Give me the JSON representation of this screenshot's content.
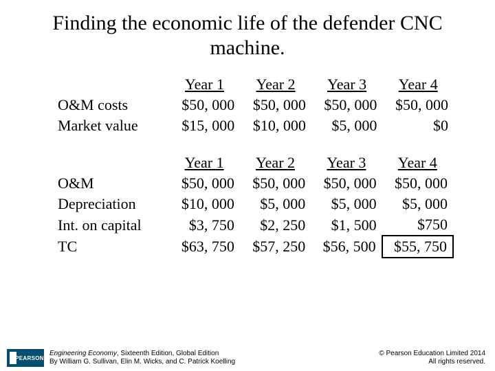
{
  "title": "Finding the economic life of the defender CNC machine.",
  "table1": {
    "headers": [
      "Year 1",
      "Year 2",
      "Year 3",
      "Year 4"
    ],
    "rows": [
      {
        "label": "O&M costs",
        "cells": [
          "$50, 000",
          "$50, 000",
          "$50, 000",
          "$50, 000"
        ]
      },
      {
        "label": "Market value",
        "cells": [
          "$15, 000",
          "$10, 000",
          "$5, 000",
          "$0"
        ]
      }
    ]
  },
  "table2": {
    "headers": [
      "Year 1",
      "Year 2",
      "Year 3",
      "Year 4"
    ],
    "rows": [
      {
        "label": "O&M",
        "cells": [
          "$50, 000",
          "$50, 000",
          "$50, 000",
          "$50, 000"
        ]
      },
      {
        "label": "Depreciation",
        "cells": [
          "$10, 000",
          "$5, 000",
          "$5, 000",
          "$5, 000"
        ]
      },
      {
        "label": "Int. on capital",
        "cells": [
          "$3, 750",
          "$2, 250",
          "$1, 500",
          "$750"
        ]
      },
      {
        "label": "TC",
        "cells": [
          "$63, 750",
          "$57, 250",
          "$56, 500",
          "$55, 750"
        ],
        "boxed_index": 3
      }
    ]
  },
  "footer": {
    "logo_text": "PEARSON",
    "book_title": "Engineering Economy",
    "book_edition": ", Sixteenth Edition, Global Edition",
    "book_authors": "By William G. Sullivan, Elin M. Wicks, and C. Patrick Koelling",
    "copyright_line1": "© Pearson Education Limited 2014",
    "copyright_line2": "All rights reserved."
  },
  "colors": {
    "background": "#ffffff",
    "text": "#000000",
    "logo_bg": "#004f71",
    "logo_fg": "#ffffff"
  }
}
